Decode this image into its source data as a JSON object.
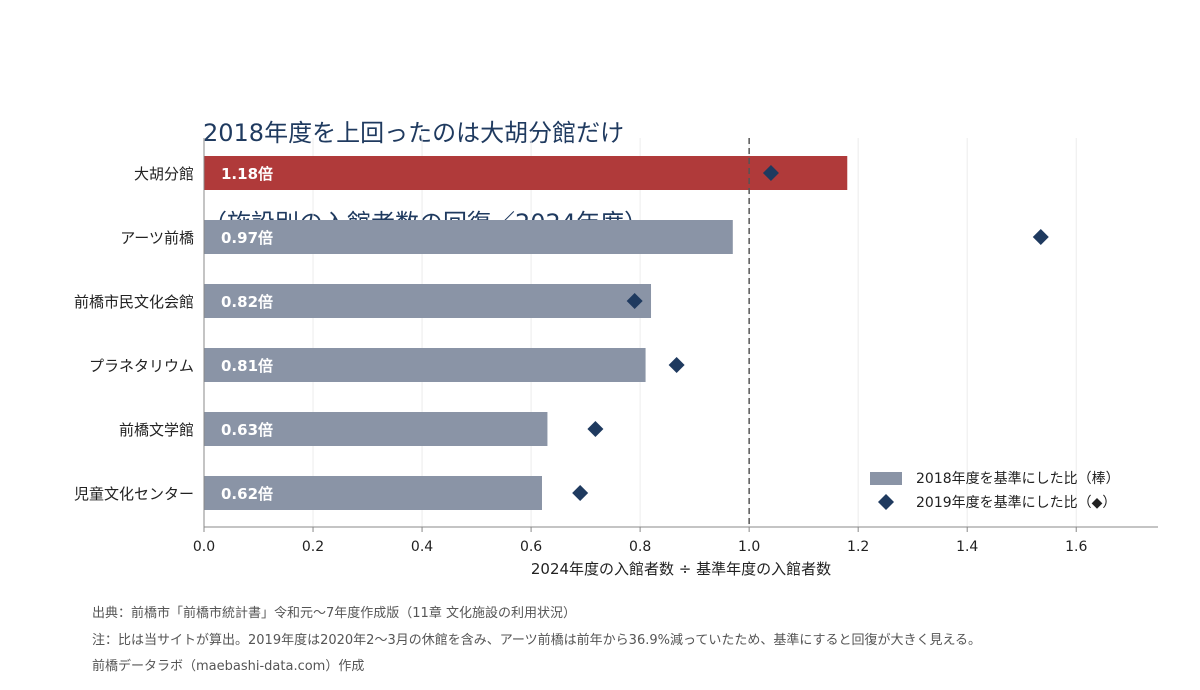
{
  "title": {
    "line1": "2018年度を上回ったのは大胡分館だけ",
    "line2": "（施設別の入館者数の回復／2024年度）"
  },
  "chart_data": {
    "type": "bar",
    "orientation": "horizontal",
    "categories": [
      "大胡分館",
      "アーツ前橋",
      "前橋市民文化会館",
      "プラネタリウム",
      "前橋文学館",
      "児童文化センター"
    ],
    "series": [
      {
        "name": "2018年度を基準にした比（棒）",
        "type": "bar",
        "values": [
          1.18,
          0.97,
          0.82,
          0.81,
          0.63,
          0.62
        ],
        "value_labels": [
          "1.18倍",
          "0.97倍",
          "0.82倍",
          "0.81倍",
          "0.63倍",
          "0.62倍"
        ]
      },
      {
        "name": "2019年度を基準にした比（◆）",
        "type": "scatter",
        "values": [
          1.04,
          1.535,
          0.79,
          0.867,
          0.718,
          0.69
        ]
      }
    ],
    "xlabel": "2024年度の入館者数 ÷ 基準年度の入館者数",
    "xlim": [
      0,
      1.75
    ],
    "xticks": [
      "0.0",
      "0.2",
      "0.4",
      "0.6",
      "0.8",
      "1.0",
      "1.2",
      "1.4",
      "1.6"
    ],
    "reference_line": 1.0,
    "highlight_category": "大胡分館",
    "legend_position": "bottom-right",
    "grid": "vertical",
    "colors": {
      "highlight": "#b03a3a",
      "bar": "#8a94a6",
      "marker": "#1f3a5f",
      "title": "#1f3a5f"
    }
  },
  "footer": {
    "source": "出典：前橋市「前橋市統計書」令和元〜7年度作成版（11章 文化施設の利用状況）",
    "note": "注：比は当サイトが算出。2019年度は2020年2〜3月の休館を含み、アーツ前橋は前年から36.9%減っていたため、基準にすると回復が大きく見える。",
    "credit": "前橋データラボ（maebashi-data.com）作成"
  }
}
